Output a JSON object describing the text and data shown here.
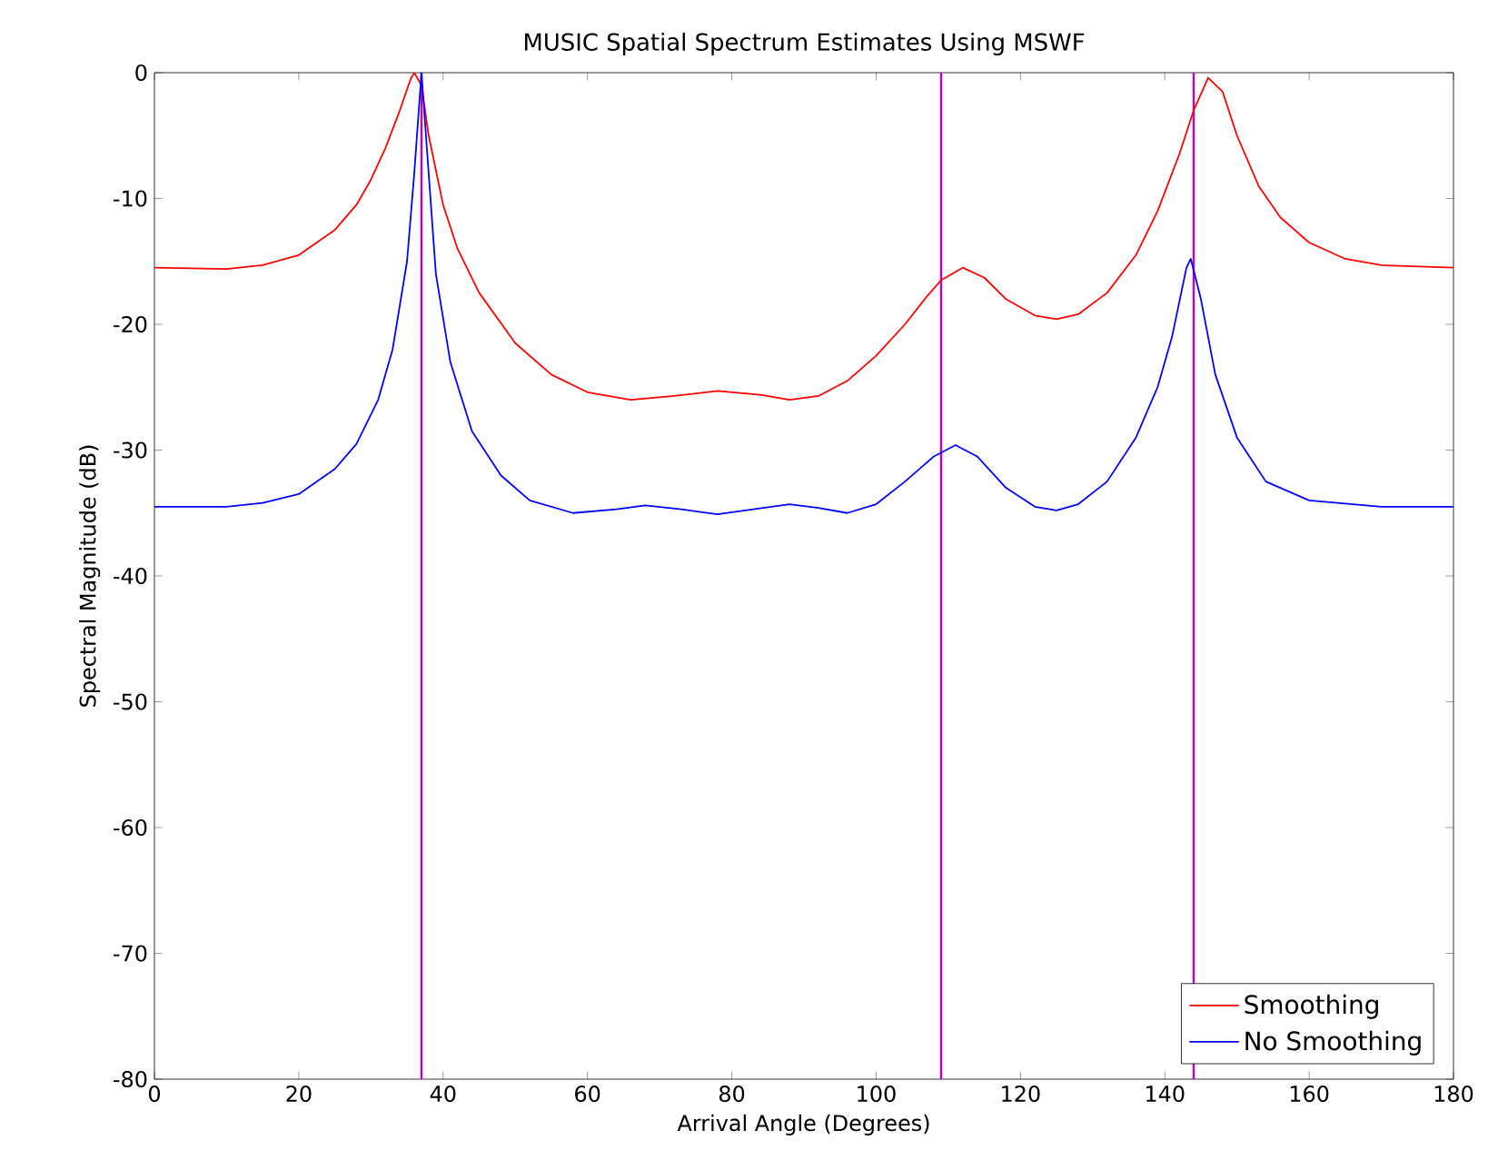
{
  "chart_data": {
    "type": "line",
    "title": "MUSIC Spatial Spectrum Estimates Using MSWF",
    "xlabel": "Arrival Angle (Degrees)",
    "ylabel": "Spectral Magnitude (dB)",
    "xlim": [
      0,
      180
    ],
    "ylim": [
      -80,
      0
    ],
    "xticks": [
      0,
      20,
      40,
      60,
      80,
      100,
      120,
      140,
      160,
      180
    ],
    "yticks": [
      -80,
      -70,
      -60,
      -50,
      -40,
      -30,
      -20,
      -10,
      0
    ],
    "grid": false,
    "legend": "bottom right",
    "marker": "none",
    "line_style": "solid",
    "series": [
      {
        "name": "Smoothing",
        "color": "#ff0000",
        "x": [
          0,
          10,
          15,
          20,
          25,
          28,
          30,
          32,
          34,
          35.5,
          36,
          37,
          38,
          40,
          42,
          45,
          50,
          55,
          60,
          66,
          72,
          78,
          84,
          88,
          92,
          96,
          100,
          104,
          107,
          109,
          112,
          115,
          118,
          122,
          125,
          128,
          132,
          136,
          139,
          142,
          144,
          146,
          148,
          150,
          153,
          156,
          160,
          165,
          170,
          180
        ],
        "values": [
          -15.5,
          -15.6,
          -15.3,
          -14.5,
          -12.5,
          -10.5,
          -8.5,
          -6,
          -3,
          -0.5,
          0,
          -1,
          -5,
          -10.5,
          -14,
          -17.5,
          -21.5,
          -24,
          -25.4,
          -26,
          -25.7,
          -25.3,
          -25.6,
          -26,
          -25.7,
          -24.5,
          -22.5,
          -20,
          -17.8,
          -16.5,
          -15.5,
          -16.3,
          -18,
          -19.3,
          -19.6,
          -19.2,
          -17.5,
          -14.5,
          -11,
          -6.5,
          -3,
          -0.4,
          -1.5,
          -5,
          -9,
          -11.5,
          -13.5,
          -14.8,
          -15.3,
          -15.5
        ]
      },
      {
        "name": "No Smoothing",
        "color": "#0000ff",
        "x": [
          0,
          10,
          15,
          20,
          25,
          28,
          31,
          33,
          35,
          36,
          37,
          38,
          39,
          41,
          44,
          48,
          52,
          58,
          64,
          68,
          73,
          78,
          83,
          88,
          92,
          96,
          100,
          104,
          108,
          111,
          114,
          118,
          122,
          125,
          128,
          132,
          136,
          139,
          141,
          143,
          143.6,
          145,
          147,
          150,
          154,
          160,
          170,
          180
        ],
        "values": [
          -34.5,
          -34.5,
          -34.2,
          -33.5,
          -31.5,
          -29.5,
          -26,
          -22,
          -15,
          -8,
          0,
          -8,
          -16,
          -23,
          -28.5,
          -32,
          -34,
          -35,
          -34.7,
          -34.4,
          -34.7,
          -35.1,
          -34.7,
          -34.3,
          -34.6,
          -35,
          -34.3,
          -32.5,
          -30.5,
          -29.6,
          -30.5,
          -33,
          -34.5,
          -34.8,
          -34.3,
          -32.5,
          -29,
          -25,
          -21,
          -15.5,
          -14.8,
          -18,
          -24,
          -29,
          -32.5,
          -34,
          -34.5,
          -34.5
        ]
      }
    ],
    "ref_lines": [
      {
        "axis": "x",
        "value": 37,
        "color": "#bf00bf"
      },
      {
        "axis": "x",
        "value": 109,
        "color": "#bf00bf"
      },
      {
        "axis": "x",
        "value": 144,
        "color": "#bf00bf"
      }
    ]
  }
}
